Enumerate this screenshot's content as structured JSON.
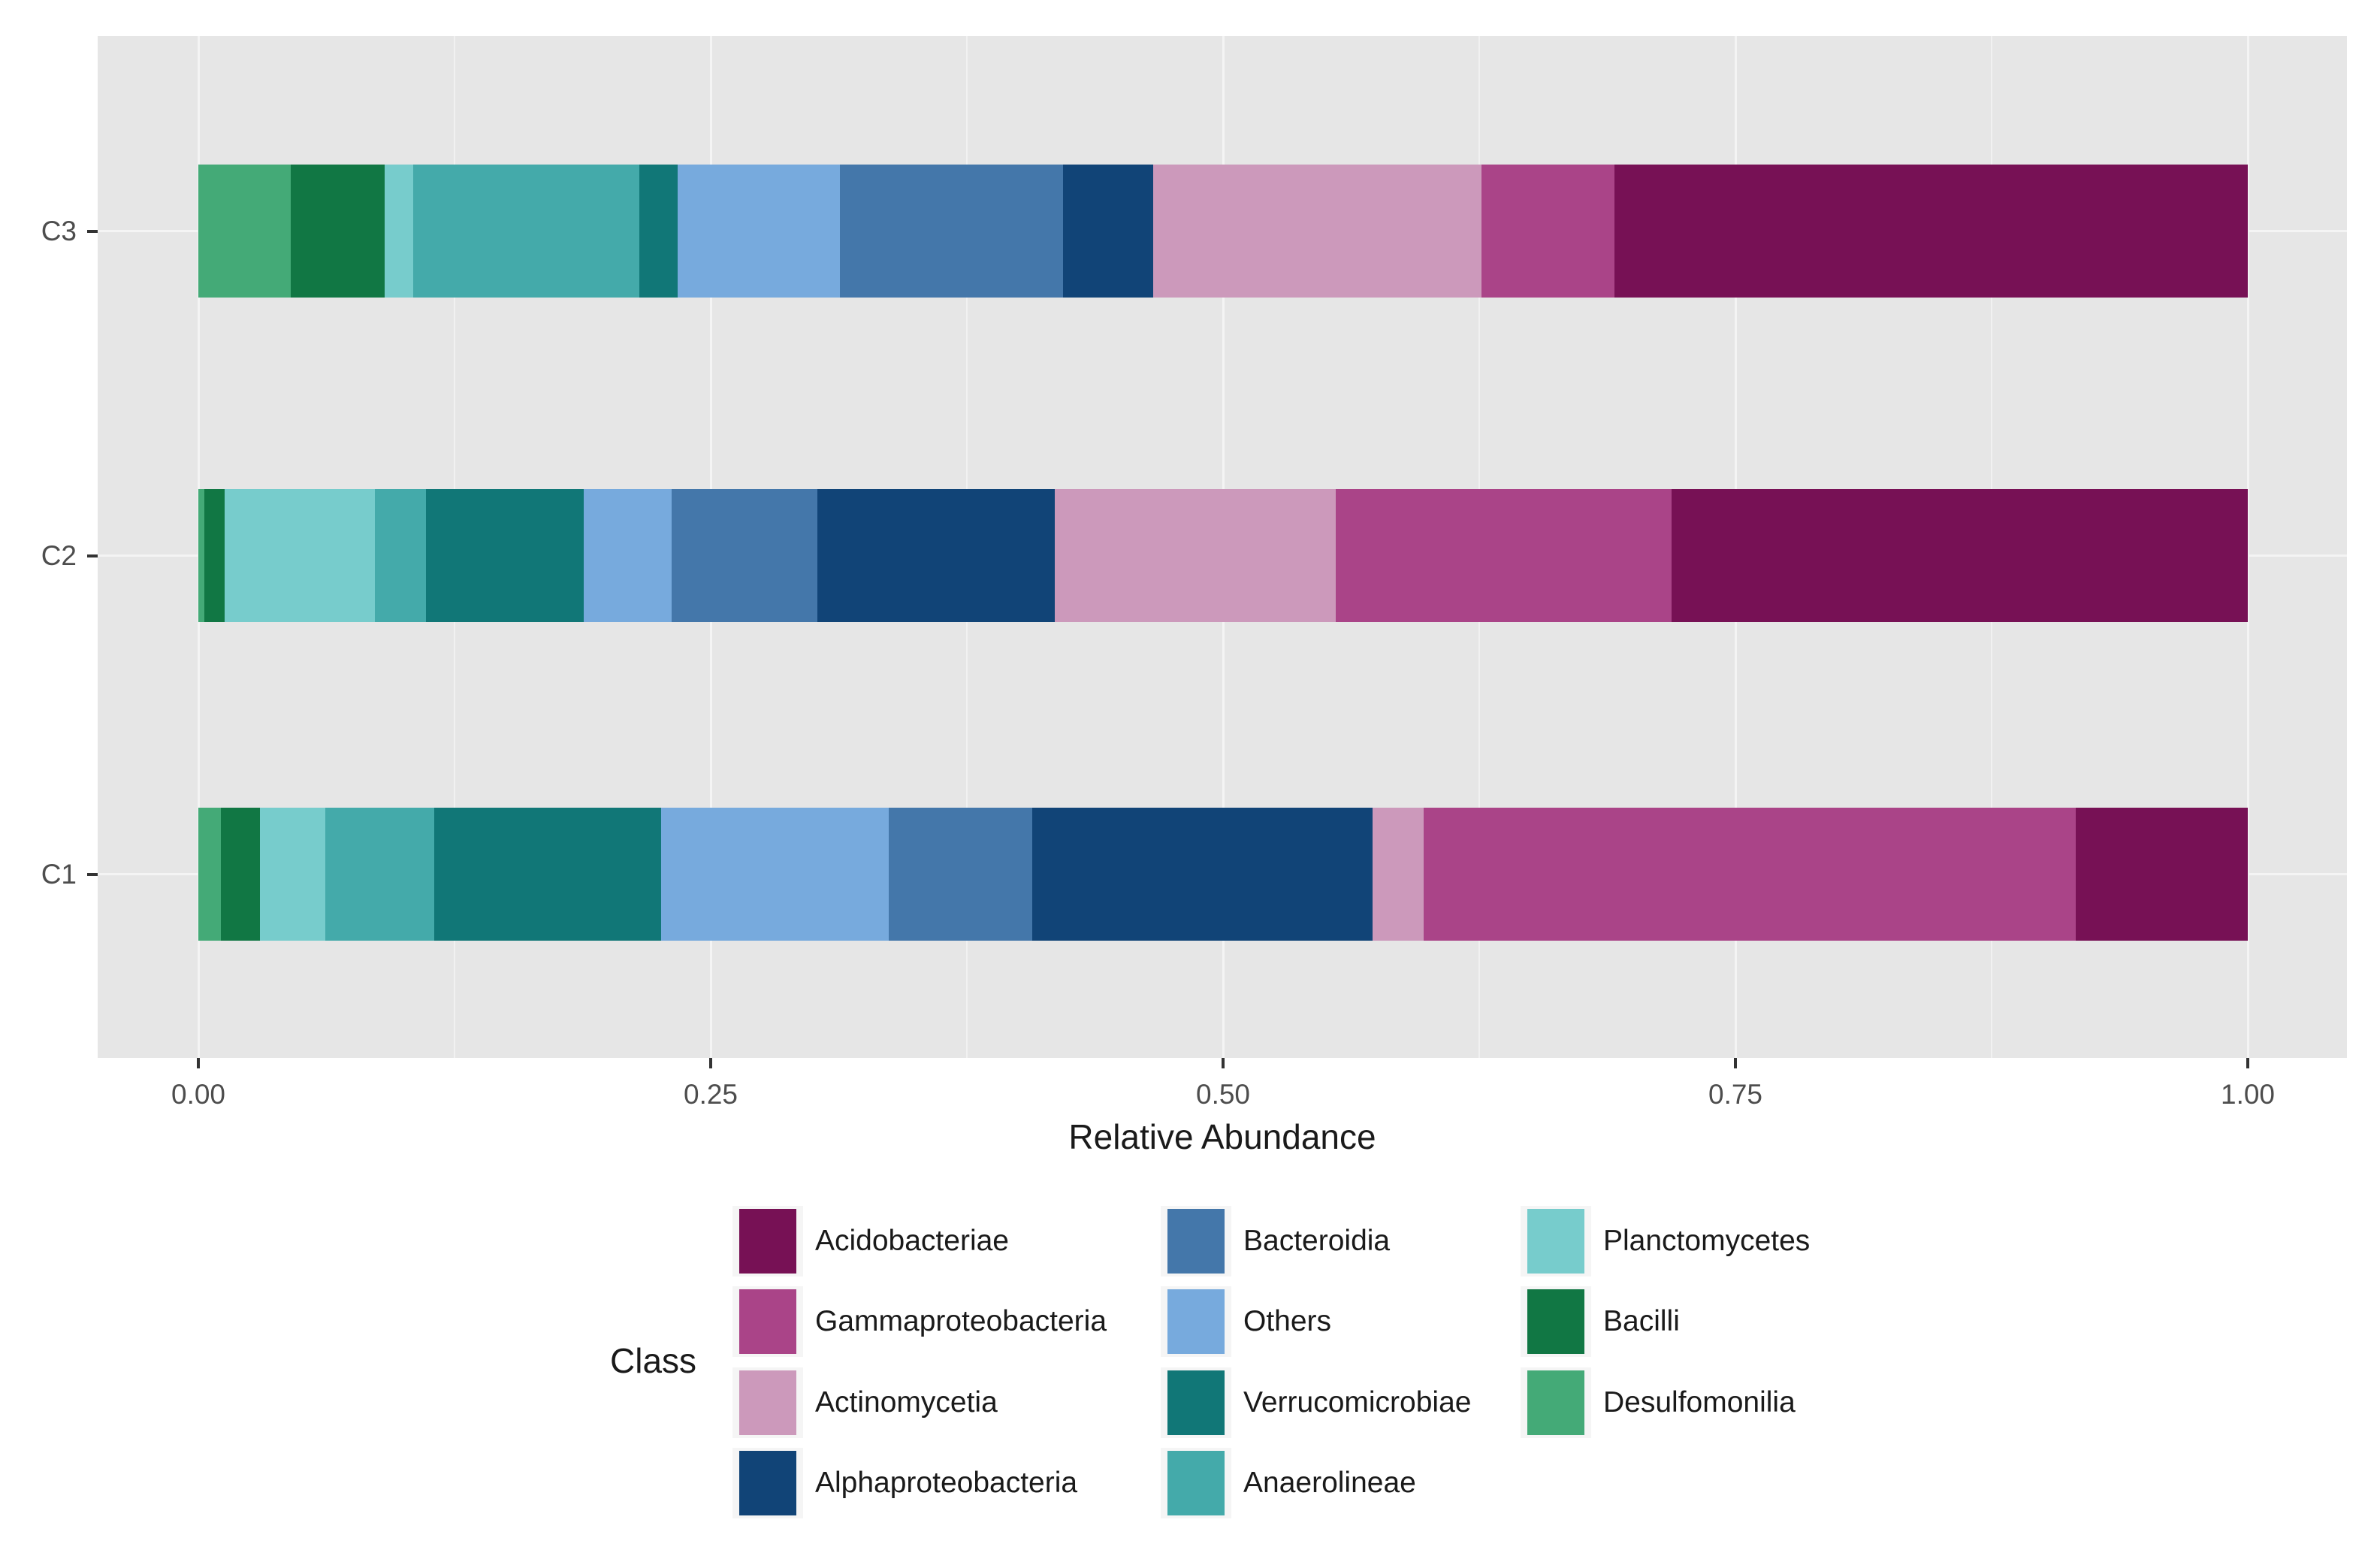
{
  "chart_data": {
    "type": "bar",
    "variant": "horizontal-stacked",
    "title": "",
    "xlabel": "Relative Abundance",
    "ylabel": "",
    "legend_title": "Class",
    "xlim": [
      0,
      1
    ],
    "grid": true,
    "panel_background": "#e6e6e6",
    "grid_major_color": "#f4f4f4",
    "grid_minor_color": "rgba(255,255,255,0.45)",
    "axis_text_color": "#4d4d4d",
    "x_ticks": [
      {
        "value": 0.0,
        "label": "0.00"
      },
      {
        "value": 0.25,
        "label": "0.25"
      },
      {
        "value": 0.5,
        "label": "0.50"
      },
      {
        "value": 0.75,
        "label": "0.75"
      },
      {
        "value": 1.0,
        "label": "1.00"
      }
    ],
    "x_minor_ticks": [
      0.125,
      0.375,
      0.625,
      0.875
    ],
    "categories": [
      "C3",
      "C2",
      "C1"
    ],
    "series": [
      {
        "name": "Desulfomonilia",
        "color": "#44AA77",
        "values": [
          0.045,
          0.003,
          0.011
        ]
      },
      {
        "name": "Bacilli",
        "color": "#117744",
        "values": [
          0.046,
          0.01,
          0.019
        ]
      },
      {
        "name": "Planctomycetes",
        "color": "#77CCCC",
        "values": [
          0.014,
          0.073,
          0.032
        ]
      },
      {
        "name": "Anaerolineae",
        "color": "#44AAAA",
        "values": [
          0.11,
          0.025,
          0.053
        ]
      },
      {
        "name": "Verrucomicrobiae",
        "color": "#117777",
        "values": [
          0.019,
          0.077,
          0.111
        ]
      },
      {
        "name": "Others",
        "color": "#77AADD",
        "values": [
          0.079,
          0.043,
          0.111
        ]
      },
      {
        "name": "Bacteroidia",
        "color": "#4477AA",
        "values": [
          0.109,
          0.071,
          0.07
        ]
      },
      {
        "name": "Alphaproteobacteria",
        "color": "#114477",
        "values": [
          0.044,
          0.116,
          0.166
        ]
      },
      {
        "name": "Actinomycetia",
        "color": "#CC99BB",
        "values": [
          0.16,
          0.137,
          0.025
        ]
      },
      {
        "name": "Gammaproteobacteria",
        "color": "#AA4488",
        "values": [
          0.065,
          0.164,
          0.318
        ]
      },
      {
        "name": "Acidobacteriae",
        "color": "#771155",
        "values": [
          0.309,
          0.281,
          0.084
        ]
      }
    ],
    "legend_columns": [
      [
        "Acidobacteriae",
        "Gammaproteobacteria",
        "Actinomycetia",
        "Alphaproteobacteria"
      ],
      [
        "Bacteroidia",
        "Others",
        "Verrucomicrobiae",
        "Anaerolineae"
      ],
      [
        "Planctomycetes",
        "Bacilli",
        "Desulfomonilia"
      ]
    ],
    "legend_position": "bottom"
  }
}
